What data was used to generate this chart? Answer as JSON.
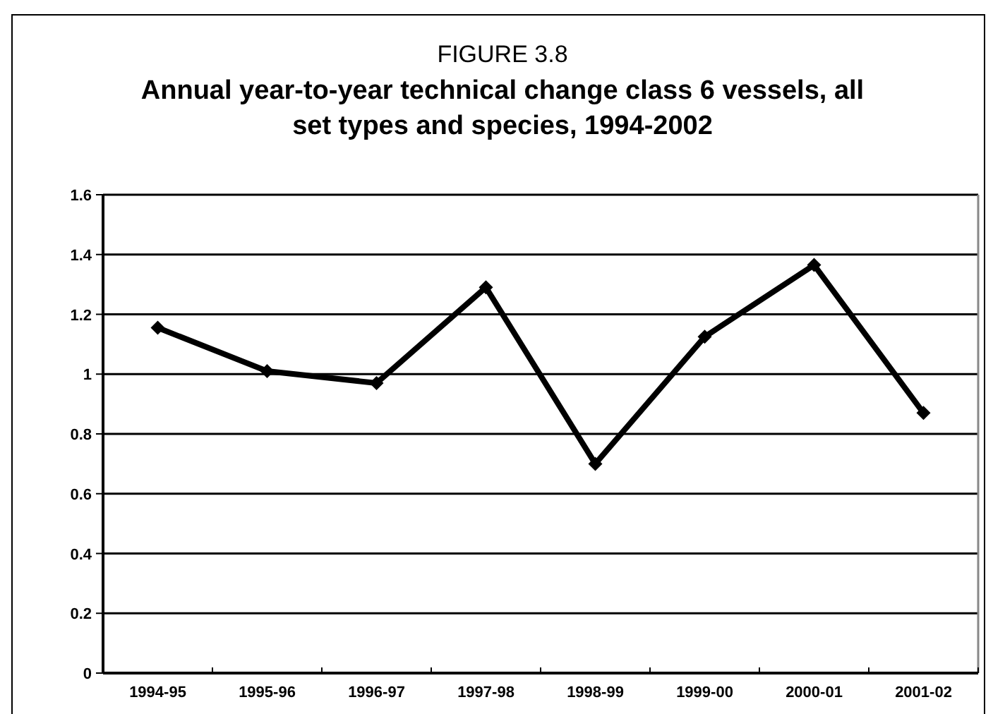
{
  "chart_data": {
    "type": "line",
    "title": "FIGURE 3.8",
    "subtitle": "Annual year-to-year technical change class 6 vessels, all set types and species, 1994-2002",
    "categories": [
      "1994-95",
      "1995-96",
      "1996-97",
      "1997-98",
      "1998-99",
      "1999-00",
      "2000-01",
      "2001-02"
    ],
    "series": [
      {
        "color": "#000000",
        "values": [
          1.155,
          1.01,
          0.97,
          1.29,
          0.7,
          1.125,
          1.365,
          0.87
        ]
      }
    ],
    "ylim": [
      0,
      1.6
    ],
    "yticks": [
      0,
      0.2,
      0.4,
      0.6,
      0.8,
      1,
      1.2,
      1.4,
      1.6
    ],
    "grid": "y",
    "marker": "diamond",
    "line_style": "solid"
  }
}
